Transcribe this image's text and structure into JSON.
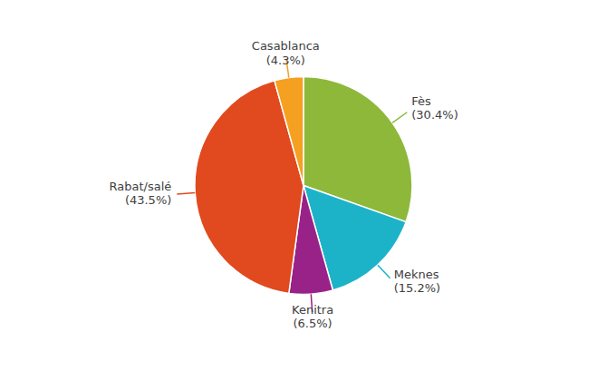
{
  "chart_data": {
    "type": "pie",
    "categories": [
      "Fès",
      "Meknes",
      "Kenitra",
      "Rabat/salé",
      "Casablanca"
    ],
    "values": [
      30.4,
      15.2,
      6.5,
      43.5,
      4.3
    ],
    "value_labels": [
      "(30.4%)",
      "(15.2%)",
      "(6.5%)",
      "(43.5%)",
      "(4.3%)"
    ],
    "colors": [
      "#8db83a",
      "#1cb3c8",
      "#992288",
      "#e04a1e",
      "#f5a020"
    ],
    "data_labels": true
  }
}
